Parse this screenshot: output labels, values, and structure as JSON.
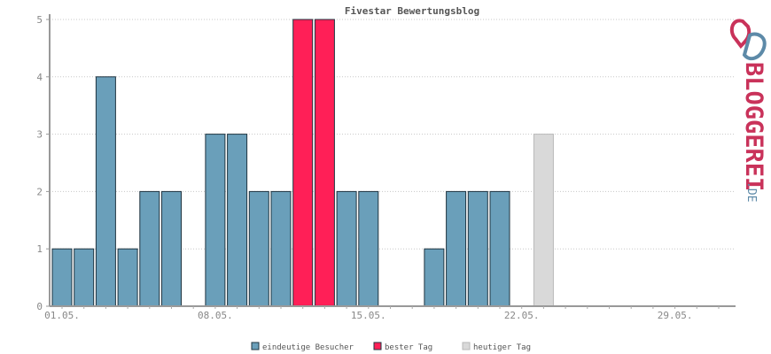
{
  "chart_data": {
    "type": "bar",
    "title": "Fivestar Bewertungsblog",
    "xlabel": "",
    "ylabel": "",
    "ylim": [
      0,
      5
    ],
    "yticks": [
      0,
      1,
      2,
      3,
      4,
      5
    ],
    "grid": true,
    "legend_position": "bottom",
    "x_tick_labels": [
      {
        "label": "01.05.",
        "day": 1
      },
      {
        "label": "08.05.",
        "day": 8
      },
      {
        "label": "15.05.",
        "day": 15
      },
      {
        "label": "22.05.",
        "day": 22
      },
      {
        "label": "29.05.",
        "day": 29
      }
    ],
    "days": [
      "01.05.",
      "02.05.",
      "03.05.",
      "04.05.",
      "05.05.",
      "06.05.",
      "07.05.",
      "08.05.",
      "09.05.",
      "10.05.",
      "11.05.",
      "12.05.",
      "13.05.",
      "14.05.",
      "15.05.",
      "16.05.",
      "17.05.",
      "18.05.",
      "19.05.",
      "20.05.",
      "21.05.",
      "22.05.",
      "23.05.",
      "24.05.",
      "25.05.",
      "26.05.",
      "27.05.",
      "28.05.",
      "29.05.",
      "30.05.",
      "31.05."
    ],
    "values": [
      1,
      1,
      4,
      1,
      2,
      2,
      0,
      3,
      3,
      2,
      2,
      5,
      5,
      2,
      2,
      0,
      0,
      1,
      2,
      2,
      2,
      0,
      3,
      0,
      0,
      0,
      0,
      0,
      0,
      0,
      0
    ],
    "categories": [
      "visitor",
      "visitor",
      "visitor",
      "visitor",
      "visitor",
      "visitor",
      "visitor",
      "visitor",
      "visitor",
      "visitor",
      "visitor",
      "best",
      "best",
      "visitor",
      "visitor",
      "visitor",
      "visitor",
      "visitor",
      "visitor",
      "visitor",
      "visitor",
      "visitor",
      "today",
      "visitor",
      "visitor",
      "visitor",
      "visitor",
      "visitor",
      "visitor",
      "visitor",
      "visitor"
    ],
    "legend": [
      {
        "key": "visitor",
        "label": "eindeutige Besucher",
        "color": "#6a9fba"
      },
      {
        "key": "best",
        "label": "bester Tag",
        "color": "#ff1f57"
      },
      {
        "key": "today",
        "label": "heutiger Tag",
        "color": "#d9d9d9"
      }
    ]
  },
  "logo": {
    "text": "BLOGGEREI",
    "suffix": ".DE",
    "color_main": "#c9325a",
    "color_accent": "#5d8aa8"
  }
}
